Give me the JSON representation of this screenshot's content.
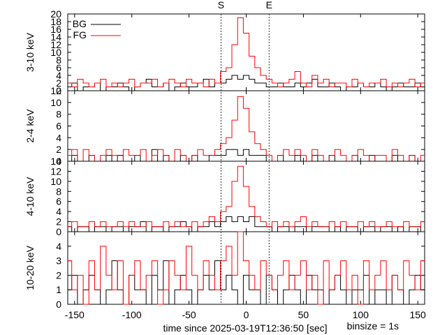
{
  "markers": {
    "start_label": "S",
    "end_label": "E",
    "start_time": -22,
    "end_time": 20
  },
  "footer": {
    "xlabel": "time since 2025-03-19T12:36:50 [sec]",
    "binsize": "binsize = 1s"
  },
  "legend": {
    "bg": "BG",
    "fg": "FG"
  },
  "colors": {
    "bg": "#000000",
    "fg": "#ff0000"
  },
  "chart_data": [
    {
      "type": "line",
      "ylabel": "3-10 keV",
      "xlim": [
        -156,
        156
      ],
      "ylim": [
        0,
        20
      ],
      "yticks": [
        0,
        2,
        4,
        6,
        8,
        10,
        12,
        14,
        16,
        18,
        20
      ],
      "xticks": [
        -150,
        -100,
        -50,
        0,
        50,
        100,
        150
      ],
      "legend": "top-left",
      "series": [
        {
          "name": "BG",
          "x": [
            -155,
            -150,
            -145,
            -140,
            -135,
            -130,
            -125,
            -120,
            -115,
            -110,
            -105,
            -100,
            -95,
            -90,
            -85,
            -80,
            -75,
            -70,
            -65,
            -60,
            -55,
            -50,
            -45,
            -40,
            -35,
            -30,
            -25,
            -20,
            -15,
            -10,
            -5,
            0,
            5,
            10,
            15,
            20,
            25,
            30,
            35,
            40,
            45,
            50,
            55,
            60,
            65,
            70,
            75,
            80,
            85,
            90,
            95,
            100,
            105,
            110,
            115,
            120,
            125,
            130,
            135,
            140,
            145,
            150,
            155
          ],
          "values": [
            1,
            2,
            0,
            1,
            1,
            2,
            0,
            1,
            1,
            2,
            1,
            0,
            1,
            2,
            3,
            1,
            1,
            2,
            0,
            1,
            2,
            1,
            1,
            2,
            3,
            1,
            2,
            2,
            3,
            4,
            3,
            4,
            3,
            2,
            2,
            1,
            1,
            2,
            1,
            1,
            2,
            1,
            2,
            3,
            1,
            1,
            2,
            1,
            0,
            1,
            1,
            2,
            1,
            1,
            2,
            1,
            0,
            1,
            2,
            1,
            1,
            2,
            1
          ]
        },
        {
          "name": "FG",
          "x": [
            -155,
            -150,
            -145,
            -140,
            -135,
            -130,
            -125,
            -120,
            -115,
            -110,
            -105,
            -100,
            -95,
            -90,
            -85,
            -80,
            -75,
            -70,
            -65,
            -60,
            -55,
            -50,
            -45,
            -40,
            -35,
            -30,
            -25,
            -20,
            -15,
            -10,
            -5,
            0,
            5,
            10,
            15,
            20,
            25,
            30,
            35,
            40,
            45,
            50,
            55,
            60,
            65,
            70,
            75,
            80,
            85,
            90,
            95,
            100,
            105,
            110,
            115,
            120,
            125,
            130,
            135,
            140,
            145,
            150,
            155
          ],
          "values": [
            2,
            1,
            3,
            2,
            1,
            2,
            3,
            1,
            2,
            1,
            2,
            3,
            1,
            2,
            2,
            3,
            1,
            2,
            3,
            2,
            1,
            3,
            2,
            2,
            1,
            3,
            2,
            5,
            6,
            12,
            19,
            15,
            9,
            6,
            4,
            3,
            2,
            1,
            2,
            3,
            5,
            2,
            1,
            4,
            2,
            3,
            1,
            2,
            2,
            1,
            3,
            2,
            1,
            2,
            2,
            3,
            1,
            2,
            1,
            2,
            3,
            1,
            2
          ]
        }
      ]
    },
    {
      "type": "line",
      "ylabel": "2-4 keV",
      "xlim": [
        -156,
        156
      ],
      "ylim": [
        0,
        12
      ],
      "yticks": [
        0,
        2,
        4,
        6,
        8,
        10,
        12
      ],
      "xticks": [
        -150,
        -100,
        -50,
        0,
        50,
        100,
        150
      ],
      "series": [
        {
          "name": "BG",
          "x": [
            -155,
            -150,
            -145,
            -140,
            -135,
            -130,
            -125,
            -120,
            -115,
            -110,
            -105,
            -100,
            -95,
            -90,
            -85,
            -80,
            -75,
            -70,
            -65,
            -60,
            -55,
            -50,
            -45,
            -40,
            -35,
            -30,
            -25,
            -20,
            -15,
            -10,
            -5,
            0,
            5,
            10,
            15,
            20,
            25,
            30,
            35,
            40,
            45,
            50,
            55,
            60,
            65,
            70,
            75,
            80,
            85,
            90,
            95,
            100,
            105,
            110,
            115,
            120,
            125,
            130,
            135,
            140,
            145,
            150,
            155
          ],
          "values": [
            0,
            1,
            0,
            0,
            1,
            0,
            0,
            1,
            0,
            1,
            0,
            0,
            1,
            0,
            0,
            2,
            0,
            1,
            0,
            0,
            1,
            0,
            1,
            0,
            0,
            1,
            1,
            1,
            2,
            2,
            1,
            2,
            1,
            1,
            1,
            0,
            0,
            1,
            0,
            0,
            1,
            0,
            0,
            1,
            0,
            0,
            1,
            0,
            0,
            0,
            1,
            0,
            0,
            1,
            0,
            0,
            0,
            1,
            0,
            0,
            1,
            0,
            0
          ]
        },
        {
          "name": "FG",
          "x": [
            -155,
            -150,
            -145,
            -140,
            -135,
            -130,
            -125,
            -120,
            -115,
            -110,
            -105,
            -100,
            -95,
            -90,
            -85,
            -80,
            -75,
            -70,
            -65,
            -60,
            -55,
            -50,
            -45,
            -40,
            -35,
            -30,
            -25,
            -20,
            -15,
            -10,
            -5,
            0,
            5,
            10,
            15,
            20,
            25,
            30,
            35,
            40,
            45,
            50,
            55,
            60,
            65,
            70,
            75,
            80,
            85,
            90,
            95,
            100,
            105,
            110,
            115,
            120,
            125,
            130,
            135,
            140,
            145,
            150,
            155
          ],
          "values": [
            1,
            2,
            0,
            2,
            1,
            0,
            1,
            2,
            1,
            0,
            2,
            1,
            1,
            2,
            0,
            1,
            2,
            1,
            0,
            2,
            1,
            0,
            1,
            2,
            1,
            1,
            2,
            3,
            4,
            7,
            11,
            9,
            5,
            3,
            2,
            1,
            0,
            1,
            2,
            1,
            2,
            1,
            0,
            2,
            1,
            0,
            1,
            2,
            1,
            0,
            1,
            2,
            1,
            0,
            1,
            1,
            0,
            2,
            1,
            0,
            1,
            0,
            1
          ]
        }
      ]
    },
    {
      "type": "line",
      "ylabel": "4-10 keV",
      "xlim": [
        -156,
        156
      ],
      "ylim": [
        0,
        14
      ],
      "yticks": [
        0,
        2,
        4,
        6,
        8,
        10,
        12,
        14
      ],
      "xticks": [
        -150,
        -100,
        -50,
        0,
        50,
        100,
        150
      ],
      "series": [
        {
          "name": "BG",
          "x": [
            -155,
            -150,
            -145,
            -140,
            -135,
            -130,
            -125,
            -120,
            -115,
            -110,
            -105,
            -100,
            -95,
            -90,
            -85,
            -80,
            -75,
            -70,
            -65,
            -60,
            -55,
            -50,
            -45,
            -40,
            -35,
            -30,
            -25,
            -20,
            -15,
            -10,
            -5,
            0,
            5,
            10,
            15,
            20,
            25,
            30,
            35,
            40,
            45,
            50,
            55,
            60,
            65,
            70,
            75,
            80,
            85,
            90,
            95,
            100,
            105,
            110,
            115,
            120,
            125,
            130,
            135,
            140,
            145,
            150,
            155
          ],
          "values": [
            1,
            0,
            1,
            1,
            0,
            1,
            1,
            0,
            1,
            1,
            0,
            1,
            1,
            2,
            0,
            1,
            1,
            0,
            1,
            1,
            2,
            1,
            0,
            1,
            1,
            2,
            1,
            2,
            3,
            2,
            3,
            2,
            3,
            1,
            1,
            1,
            0,
            1,
            1,
            0,
            1,
            1,
            0,
            1,
            1,
            1,
            0,
            1,
            0,
            1,
            1,
            0,
            1,
            1,
            0,
            1,
            1,
            0,
            1,
            0,
            1,
            1,
            0
          ]
        },
        {
          "name": "FG",
          "x": [
            -155,
            -150,
            -145,
            -140,
            -135,
            -130,
            -125,
            -120,
            -115,
            -110,
            -105,
            -100,
            -95,
            -90,
            -85,
            -80,
            -75,
            -70,
            -65,
            -60,
            -55,
            -50,
            -45,
            -40,
            -35,
            -30,
            -25,
            -20,
            -15,
            -10,
            -5,
            0,
            5,
            10,
            15,
            20,
            25,
            30,
            35,
            40,
            45,
            50,
            55,
            60,
            65,
            70,
            75,
            80,
            85,
            90,
            95,
            100,
            105,
            110,
            115,
            120,
            125,
            130,
            135,
            140,
            145,
            150,
            155
          ],
          "values": [
            1,
            2,
            1,
            1,
            2,
            1,
            2,
            1,
            1,
            2,
            1,
            2,
            1,
            1,
            2,
            1,
            1,
            2,
            1,
            2,
            1,
            1,
            2,
            1,
            2,
            3,
            2,
            4,
            5,
            10,
            13,
            9,
            5,
            3,
            2,
            1,
            2,
            1,
            2,
            1,
            2,
            3,
            1,
            2,
            1,
            1,
            2,
            1,
            2,
            1,
            1,
            2,
            1,
            2,
            1,
            1,
            2,
            1,
            1,
            2,
            1,
            1,
            2
          ]
        }
      ]
    },
    {
      "type": "line",
      "ylabel": "10-20 keV",
      "xlim": [
        -156,
        156
      ],
      "ylim": [
        0,
        5
      ],
      "yticks": [
        0,
        1,
        2,
        3,
        4
      ],
      "xticks": [
        -150,
        -100,
        -50,
        0,
        50,
        100,
        150
      ],
      "xticklabels": [
        "-150",
        "-100",
        "-50",
        "0",
        "50",
        "100",
        "150"
      ],
      "series": [
        {
          "name": "BG",
          "x": [
            -155,
            -150,
            -145,
            -140,
            -135,
            -130,
            -125,
            -120,
            -115,
            -110,
            -105,
            -100,
            -95,
            -90,
            -85,
            -80,
            -75,
            -70,
            -65,
            -60,
            -55,
            -50,
            -45,
            -40,
            -35,
            -30,
            -25,
            -20,
            -15,
            -10,
            -5,
            0,
            5,
            10,
            15,
            20,
            25,
            30,
            35,
            40,
            45,
            50,
            55,
            60,
            65,
            70,
            75,
            80,
            85,
            90,
            95,
            100,
            105,
            110,
            115,
            120,
            125,
            130,
            135,
            140,
            145,
            150,
            155
          ],
          "values": [
            1,
            2,
            0,
            1,
            2,
            1,
            0,
            1,
            3,
            1,
            0,
            2,
            1,
            1,
            0,
            2,
            1,
            3,
            0,
            1,
            2,
            1,
            0,
            1,
            2,
            1,
            3,
            1,
            2,
            1,
            0,
            2,
            1,
            1,
            0,
            2,
            1,
            0,
            1,
            2,
            1,
            0,
            2,
            1,
            1,
            0,
            1,
            2,
            1,
            0,
            1,
            1,
            2,
            0,
            1,
            1,
            0,
            2,
            1,
            0,
            1,
            2,
            1
          ]
        },
        {
          "name": "FG",
          "x": [
            -155,
            -150,
            -145,
            -140,
            -135,
            -130,
            -125,
            -120,
            -115,
            -110,
            -105,
            -100,
            -95,
            -90,
            -85,
            -80,
            -75,
            -70,
            -65,
            -60,
            -55,
            -50,
            -45,
            -40,
            -35,
            -30,
            -25,
            -20,
            -15,
            -10,
            -5,
            0,
            5,
            10,
            15,
            20,
            25,
            30,
            35,
            40,
            45,
            50,
            55,
            60,
            65,
            70,
            75,
            80,
            85,
            90,
            95,
            100,
            105,
            110,
            115,
            120,
            125,
            130,
            135,
            140,
            145,
            150,
            155
          ],
          "values": [
            3,
            1,
            2,
            0,
            3,
            1,
            4,
            2,
            1,
            3,
            0,
            2,
            3,
            1,
            2,
            3,
            0,
            1,
            3,
            2,
            1,
            4,
            2,
            1,
            3,
            2,
            1,
            3,
            4,
            2,
            5,
            3,
            2,
            1,
            3,
            2,
            1,
            2,
            3,
            1,
            2,
            3,
            1,
            2,
            0,
            3,
            1,
            2,
            3,
            1,
            2,
            0,
            3,
            1,
            2,
            3,
            1,
            2,
            1,
            3,
            2,
            1,
            3
          ]
        }
      ]
    }
  ]
}
